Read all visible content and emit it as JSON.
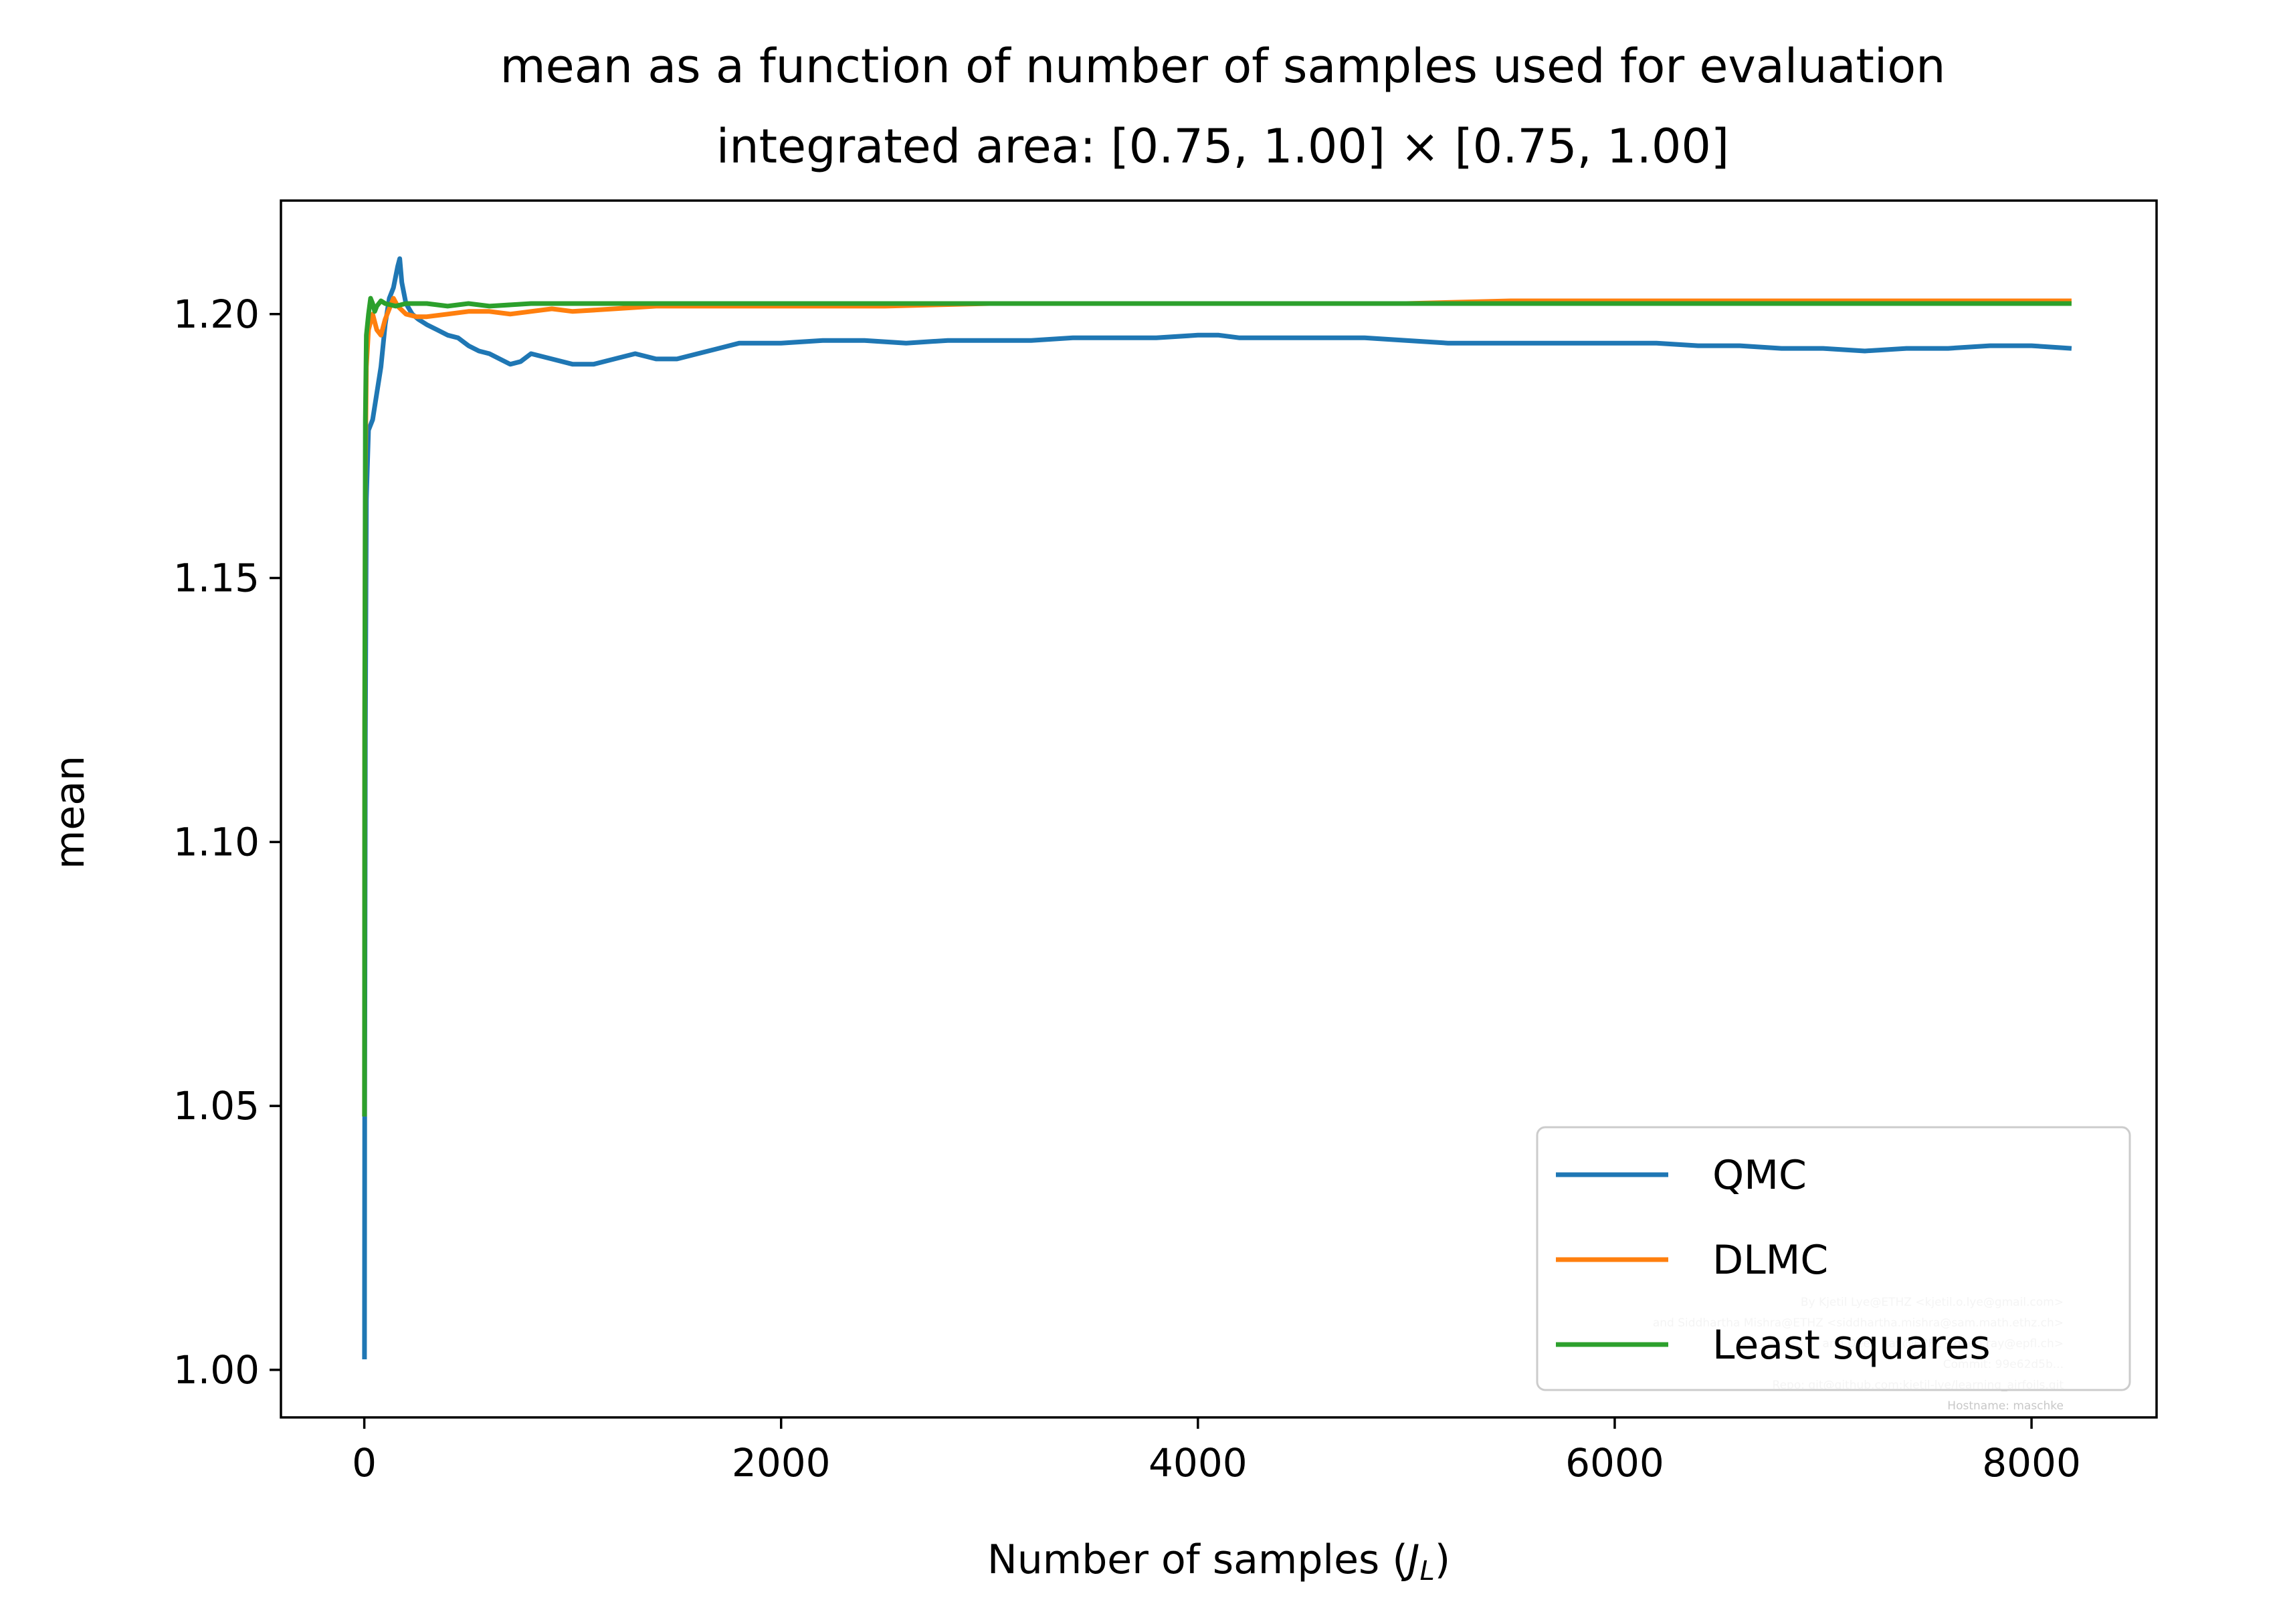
{
  "chart_data": {
    "type": "line",
    "title": "mean as a function of number of samples used for evaluation",
    "subtitle": "integrated area: [0.75, 1.00] × [0.75, 1.00]",
    "xlabel": "Number of samples (J_L)",
    "xlabel_parts": {
      "prefix": "Number of samples (",
      "symbol": "J",
      "subscript": "L",
      "suffix": ")"
    },
    "ylabel": "mean",
    "xlim": [
      -400,
      8600
    ],
    "ylim": [
      0.991,
      1.2215
    ],
    "x_ticks": [
      0,
      2000,
      4000,
      6000,
      8000
    ],
    "x_tick_labels": [
      "0",
      "2000",
      "4000",
      "6000",
      "8000"
    ],
    "y_ticks": [
      1.0,
      1.05,
      1.1,
      1.15,
      1.2
    ],
    "y_tick_labels": [
      "1.00",
      "1.05",
      "1.10",
      "1.15",
      "1.20"
    ],
    "grid": false,
    "legend_position": "lower-right",
    "series": [
      {
        "name": "QMC",
        "color": "#1f77b4",
        "x": [
          1,
          2,
          5,
          10,
          20,
          40,
          60,
          80,
          100,
          120,
          140,
          160,
          170,
          180,
          200,
          230,
          260,
          300,
          350,
          400,
          450,
          500,
          550,
          600,
          650,
          700,
          750,
          800,
          900,
          1000,
          1100,
          1200,
          1300,
          1400,
          1500,
          1600,
          1700,
          1800,
          1900,
          2000,
          2200,
          2400,
          2600,
          2800,
          3000,
          3200,
          3400,
          3600,
          3800,
          4000,
          4100,
          4200,
          4400,
          4600,
          4800,
          5000,
          5200,
          5400,
          5600,
          5800,
          6000,
          6200,
          6400,
          6600,
          6800,
          7000,
          7200,
          7400,
          7600,
          7800,
          8000,
          8192
        ],
        "values": [
          1.002,
          1.047,
          1.12,
          1.165,
          1.178,
          1.18,
          1.185,
          1.19,
          1.198,
          1.203,
          1.205,
          1.209,
          1.2105,
          1.206,
          1.202,
          1.2,
          1.199,
          1.198,
          1.197,
          1.196,
          1.1955,
          1.194,
          1.193,
          1.1925,
          1.1915,
          1.1905,
          1.191,
          1.1925,
          1.1915,
          1.1905,
          1.1905,
          1.1915,
          1.1925,
          1.1915,
          1.1915,
          1.1925,
          1.1935,
          1.1945,
          1.1945,
          1.1945,
          1.195,
          1.195,
          1.1945,
          1.195,
          1.195,
          1.195,
          1.1955,
          1.1955,
          1.1955,
          1.196,
          1.196,
          1.1955,
          1.1955,
          1.1955,
          1.1955,
          1.195,
          1.1945,
          1.1945,
          1.1945,
          1.1945,
          1.1945,
          1.1945,
          1.194,
          1.194,
          1.1935,
          1.1935,
          1.193,
          1.1935,
          1.1935,
          1.194,
          1.194,
          1.1935
        ]
      },
      {
        "name": "DLMC",
        "color": "#ff7f0e",
        "x": [
          1,
          2,
          5,
          10,
          20,
          40,
          60,
          80,
          100,
          120,
          140,
          160,
          200,
          250,
          300,
          400,
          500,
          600,
          700,
          800,
          900,
          1000,
          1200,
          1400,
          1600,
          1800,
          2000,
          2500,
          3000,
          3500,
          4000,
          4500,
          5000,
          5500,
          6000,
          6500,
          7000,
          7500,
          8000,
          8192
        ],
        "values": [
          1.048,
          1.12,
          1.17,
          1.19,
          1.197,
          1.2,
          1.197,
          1.196,
          1.199,
          1.201,
          1.203,
          1.2015,
          1.2,
          1.1995,
          1.1995,
          1.2,
          1.2005,
          1.2005,
          1.2,
          1.2005,
          1.201,
          1.2005,
          1.201,
          1.2015,
          1.2015,
          1.2015,
          1.2015,
          1.2015,
          1.202,
          1.202,
          1.202,
          1.202,
          1.202,
          1.2025,
          1.2025,
          1.2025,
          1.2025,
          1.2025,
          1.2025,
          1.2025
        ]
      },
      {
        "name": "Least squares",
        "color": "#2ca02c",
        "x": [
          1,
          2,
          5,
          10,
          20,
          30,
          40,
          50,
          60,
          80,
          100,
          150,
          200,
          300,
          400,
          500,
          600,
          800,
          1000,
          1500,
          2000,
          3000,
          4000,
          5000,
          6000,
          7000,
          8000,
          8192
        ],
        "values": [
          1.048,
          1.123,
          1.18,
          1.196,
          1.2,
          1.203,
          1.202,
          1.2005,
          1.2015,
          1.2025,
          1.202,
          1.2015,
          1.202,
          1.202,
          1.2015,
          1.202,
          1.2015,
          1.202,
          1.202,
          1.202,
          1.202,
          1.202,
          1.202,
          1.202,
          1.202,
          1.202,
          1.202,
          1.202
        ]
      }
    ],
    "watermark_lines": [
      "By Kjetil Lye@ETHZ <kjetil.o.lye@gmail.com>",
      "and Siddhartha Mishra@ETHZ <siddhartha.mishra@sam.math.ethz.ch>",
      "and Deep Ray@EPFL <deep.ray@epfl.ch>",
      "Commit: 99e62d5b...",
      "Repo: git@github.com:kjetil-lye/learning_airfoils.git",
      "Hostname: maschke"
    ]
  }
}
